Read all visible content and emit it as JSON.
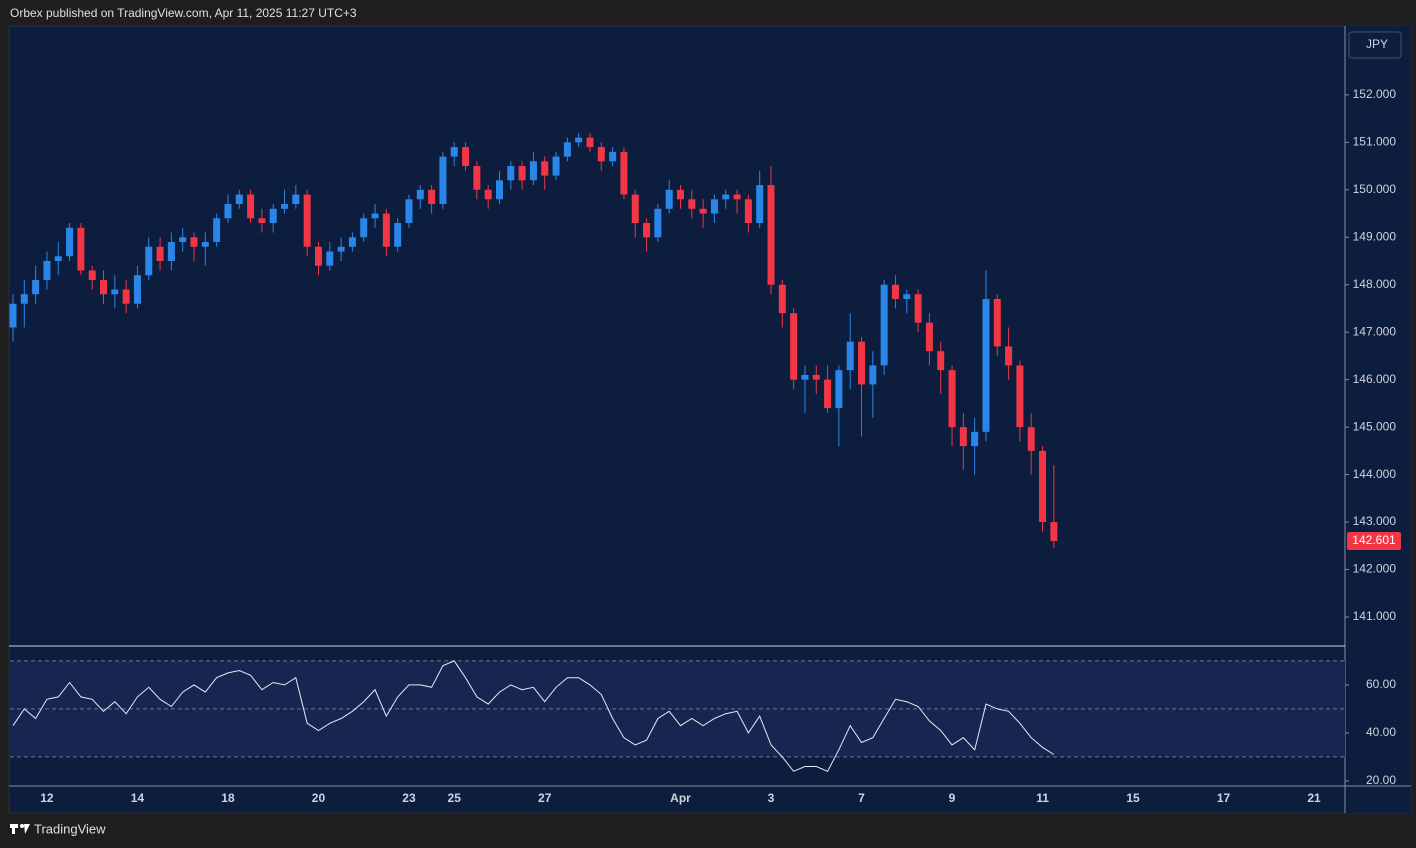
{
  "header": {
    "text": "Orbex published on TradingView.com, Apr 11, 2025 11:27 UTC+3"
  },
  "footer": {
    "brand": "TradingView"
  },
  "chart_data": [
    {
      "type": "candlestick",
      "currency": "JPY",
      "up_color": "#2a86e8",
      "down_color": "#f23645",
      "categories": [
        null,
        null,
        null,
        "12",
        null,
        null,
        null,
        null,
        null,
        null,
        null,
        "14",
        null,
        null,
        null,
        null,
        null,
        null,
        null,
        "18",
        null,
        null,
        null,
        null,
        null,
        null,
        null,
        "20",
        null,
        null,
        null,
        null,
        null,
        null,
        null,
        "23",
        null,
        null,
        null,
        "25",
        null,
        null,
        null,
        null,
        null,
        null,
        null,
        "27",
        null,
        null,
        null,
        null,
        null,
        null,
        null,
        null,
        null,
        null,
        null,
        "Apr",
        null,
        null,
        null,
        null,
        null,
        null,
        null,
        "3",
        null,
        null,
        null,
        null,
        null,
        null,
        null,
        "7",
        null,
        null,
        null,
        null,
        null,
        null,
        null,
        "9",
        null,
        null,
        null,
        null,
        null,
        null,
        null,
        "11",
        null,
        null,
        null,
        null,
        null,
        null,
        null,
        "15",
        null,
        null,
        null,
        null,
        null,
        null,
        null,
        "17",
        null,
        null,
        null,
        null,
        null,
        null,
        null,
        "21",
        null,
        null
      ],
      "open": [
        147.1,
        147.6,
        147.8,
        148.1,
        148.5,
        148.6,
        149.2,
        148.3,
        148.1,
        147.8,
        147.9,
        147.6,
        148.2,
        148.8,
        148.5,
        148.9,
        149.0,
        148.8,
        148.9,
        149.4,
        149.7,
        149.9,
        149.4,
        149.3,
        149.6,
        149.7,
        149.9,
        148.8,
        148.4,
        148.7,
        148.8,
        149.0,
        149.4,
        149.5,
        148.8,
        149.3,
        149.8,
        150.0,
        149.7,
        150.7,
        150.9,
        150.5,
        150.0,
        149.8,
        150.2,
        150.5,
        150.2,
        150.6,
        150.3,
        150.7,
        151.0,
        151.1,
        150.9,
        150.6,
        150.8,
        149.9,
        149.3,
        149.0,
        149.6,
        150.0,
        149.8,
        149.6,
        149.5,
        149.8,
        149.9,
        149.8,
        149.3,
        150.1,
        148.0,
        147.4,
        146.0,
        146.1,
        146.0,
        145.4,
        146.2,
        146.8,
        145.9,
        146.3,
        148.0,
        147.7,
        147.8,
        147.2,
        146.6,
        146.2,
        145.0,
        144.6,
        144.9,
        147.7,
        146.7,
        146.3,
        145.0,
        144.5,
        143.0,
        null,
        null,
        null,
        null,
        null,
        null,
        null,
        null,
        null,
        null,
        null,
        null,
        null,
        null,
        null,
        null,
        null,
        null,
        null,
        null,
        null,
        null,
        null,
        null,
        null
      ],
      "close": [
        147.6,
        147.8,
        148.1,
        148.5,
        148.6,
        149.2,
        148.3,
        148.1,
        147.8,
        147.9,
        147.6,
        148.2,
        148.8,
        148.5,
        148.9,
        149.0,
        148.8,
        148.9,
        149.4,
        149.7,
        149.9,
        149.4,
        149.3,
        149.6,
        149.7,
        149.9,
        148.8,
        148.4,
        148.7,
        148.8,
        149.0,
        149.4,
        149.5,
        148.8,
        149.3,
        149.8,
        150.0,
        149.7,
        150.7,
        150.9,
        150.5,
        150.0,
        149.8,
        150.2,
        150.5,
        150.2,
        150.6,
        150.3,
        150.7,
        151.0,
        151.1,
        150.9,
        150.6,
        150.8,
        149.9,
        149.3,
        149.0,
        149.6,
        150.0,
        149.8,
        149.6,
        149.5,
        149.8,
        149.9,
        149.8,
        149.3,
        150.1,
        148.0,
        147.4,
        146.0,
        146.1,
        146.0,
        145.4,
        146.2,
        146.8,
        145.9,
        146.3,
        148.0,
        147.7,
        147.8,
        147.2,
        146.6,
        146.2,
        145.0,
        144.6,
        144.9,
        147.7,
        146.7,
        146.3,
        145.0,
        144.5,
        143.0,
        142.601,
        null,
        null,
        null,
        null,
        null,
        null,
        null,
        null,
        null,
        null,
        null,
        null,
        null,
        null,
        null,
        null,
        null,
        null,
        null,
        null,
        null,
        null,
        null,
        null,
        null
      ],
      "high": [
        147.8,
        148.1,
        148.4,
        148.7,
        148.9,
        149.3,
        149.3,
        148.4,
        148.3,
        148.2,
        148.1,
        148.4,
        149.0,
        149.0,
        149.1,
        149.2,
        149.1,
        149.1,
        149.5,
        149.9,
        150.0,
        150.0,
        149.6,
        149.7,
        150.0,
        150.1,
        150.0,
        148.9,
        148.9,
        149.0,
        149.1,
        149.5,
        149.7,
        149.6,
        149.4,
        149.9,
        150.1,
        150.1,
        150.8,
        151.0,
        151.0,
        150.6,
        150.1,
        150.4,
        150.6,
        150.6,
        150.8,
        150.7,
        150.8,
        151.1,
        151.2,
        151.2,
        151.0,
        150.9,
        150.9,
        150.0,
        149.4,
        149.7,
        150.2,
        150.1,
        150.0,
        149.8,
        149.9,
        150.0,
        150.0,
        149.9,
        150.4,
        150.5,
        148.1,
        147.5,
        146.3,
        146.3,
        146.3,
        146.3,
        147.4,
        146.9,
        146.6,
        148.1,
        148.2,
        147.9,
        147.9,
        147.4,
        146.8,
        146.3,
        145.3,
        145.2,
        148.3,
        147.8,
        147.1,
        146.4,
        145.3,
        144.6,
        144.2,
        null,
        null,
        null,
        null,
        null,
        null,
        null,
        null,
        null,
        null,
        null,
        null,
        null,
        null,
        null,
        null,
        null,
        null,
        null,
        null,
        null,
        null,
        null,
        null,
        null
      ],
      "low": [
        146.8,
        147.1,
        147.6,
        147.9,
        148.2,
        148.5,
        148.2,
        147.9,
        147.6,
        147.5,
        147.4,
        147.5,
        148.1,
        148.3,
        148.3,
        148.7,
        148.5,
        148.4,
        148.8,
        149.3,
        149.6,
        149.3,
        149.1,
        149.1,
        149.5,
        149.6,
        148.6,
        148.2,
        148.3,
        148.5,
        148.7,
        148.9,
        149.2,
        148.6,
        148.7,
        149.2,
        149.6,
        149.5,
        149.6,
        150.5,
        150.4,
        149.8,
        149.6,
        149.7,
        150.0,
        150.0,
        150.1,
        150.0,
        150.2,
        150.6,
        150.9,
        150.8,
        150.4,
        150.5,
        149.8,
        149.0,
        148.7,
        148.9,
        149.5,
        149.6,
        149.4,
        149.2,
        149.3,
        149.6,
        149.5,
        149.1,
        149.2,
        147.8,
        147.1,
        145.8,
        145.3,
        145.7,
        145.3,
        144.6,
        145.8,
        144.8,
        145.2,
        146.1,
        147.5,
        147.4,
        147.0,
        146.3,
        145.7,
        144.6,
        144.1,
        144.0,
        144.7,
        146.5,
        146.0,
        144.7,
        144.0,
        142.8,
        142.45,
        null,
        null,
        null,
        null,
        null,
        null,
        null,
        null,
        null,
        null,
        null,
        null,
        null,
        null,
        null,
        null,
        null,
        null,
        null,
        null,
        null,
        null,
        null,
        null,
        null
      ],
      "ylim": [
        140.41,
        153.43
      ],
      "yticks": [
        {
          "value": 141,
          "label": "141.000"
        },
        {
          "value": 142,
          "label": "142.000"
        },
        {
          "value": 143,
          "label": "143.000"
        },
        {
          "value": 144,
          "label": "144.000"
        },
        {
          "value": 145,
          "label": "145.000"
        },
        {
          "value": 146,
          "label": "146.000"
        },
        {
          "value": 147,
          "label": "147.000"
        },
        {
          "value": 148,
          "label": "148.000"
        },
        {
          "value": 149,
          "label": "149.000"
        },
        {
          "value": 150,
          "label": "150.000"
        },
        {
          "value": 151,
          "label": "151.000"
        },
        {
          "value": 152,
          "label": "152.000"
        }
      ]
    },
    {
      "type": "line",
      "color": "#e8eaf0",
      "levels": [
        30,
        50,
        70
      ],
      "values": [
        43,
        50,
        46,
        54,
        55,
        61,
        55,
        54,
        49,
        53,
        48,
        55,
        59,
        54,
        51,
        57,
        60,
        57,
        63,
        65,
        66,
        64,
        58,
        61,
        60,
        63,
        44,
        41,
        44,
        46,
        49,
        53,
        58,
        47,
        55,
        60,
        60,
        59,
        68,
        70,
        63,
        55,
        52,
        57,
        60,
        58,
        59,
        53,
        59,
        63,
        63,
        60,
        56,
        46,
        38,
        35,
        37,
        46,
        49,
        43,
        46,
        43,
        46,
        48,
        49,
        40,
        47,
        35,
        30,
        24,
        26,
        26,
        24,
        33,
        43,
        36,
        38,
        46,
        54,
        53,
        51,
        45,
        41,
        35,
        38,
        33,
        52,
        50,
        49,
        44,
        38,
        34,
        31,
        null,
        null,
        null,
        null,
        null,
        null,
        null,
        null,
        null,
        null,
        null,
        null,
        null,
        null,
        null,
        null,
        null,
        null,
        null,
        null,
        null,
        null,
        null,
        null,
        null
      ],
      "ylim": [
        18.3,
        75.8
      ],
      "yticks": [
        {
          "value": 20,
          "label": "20.00"
        },
        {
          "value": 40,
          "label": "40.00"
        },
        {
          "value": 60,
          "label": "60.00"
        }
      ]
    }
  ]
}
